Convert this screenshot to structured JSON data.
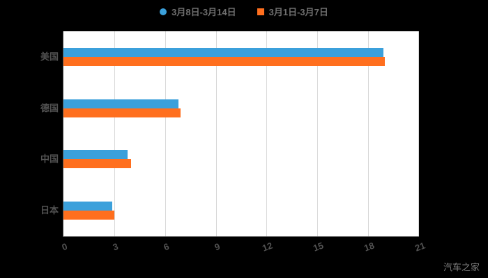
{
  "chart_data": {
    "type": "bar",
    "orientation": "horizontal",
    "title": "",
    "categories": [
      "美国",
      "德国",
      "中国",
      "日本"
    ],
    "series": [
      {
        "name": "3月8日-3月14日",
        "color": "#3BA0DB",
        "marker": "circle",
        "values": [
          18.9,
          6.8,
          3.8,
          2.9
        ]
      },
      {
        "name": "3月1日-3月7日",
        "color": "#FF6F1E",
        "marker": "square",
        "values": [
          19.0,
          6.9,
          4.0,
          3.0
        ]
      }
    ],
    "xlim": [
      0,
      21
    ],
    "xticks": [
      0,
      3,
      6,
      9,
      12,
      15,
      18,
      21
    ],
    "grid": true,
    "legend_position": "top",
    "plot_background": "#ffffff",
    "page_background": "#000000"
  },
  "watermark": "汽车之家"
}
